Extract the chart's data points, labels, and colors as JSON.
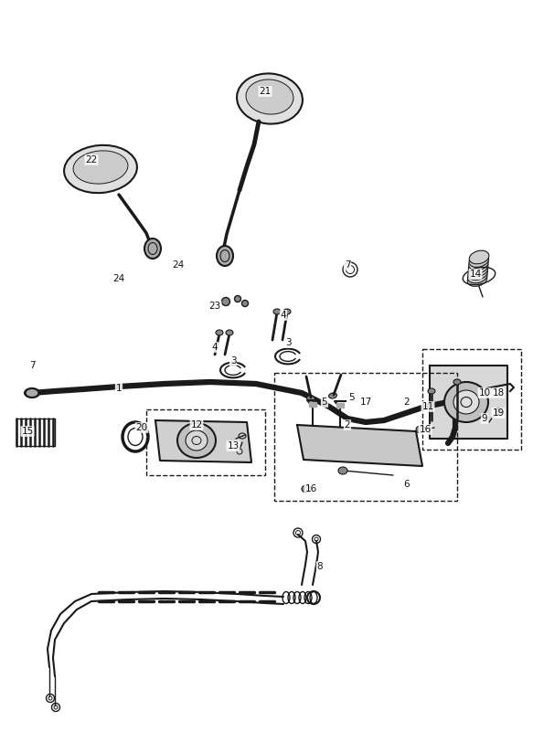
{
  "background_color": "#ffffff",
  "fig_width": 5.83,
  "fig_height": 8.24,
  "dpi": 100,
  "line_color": "#1a1a1a",
  "label_fontsize": 7.5,
  "label_color": "#111111",
  "labels": [
    [
      "22",
      100,
      175
    ],
    [
      "21",
      290,
      100
    ],
    [
      "24",
      195,
      290
    ],
    [
      "24",
      130,
      305
    ],
    [
      "23",
      235,
      335
    ],
    [
      "4",
      310,
      345
    ],
    [
      "4",
      235,
      380
    ],
    [
      "3",
      255,
      395
    ],
    [
      "3",
      315,
      375
    ],
    [
      "7",
      380,
      290
    ],
    [
      "7",
      35,
      400
    ],
    [
      "1",
      130,
      425
    ],
    [
      "17",
      400,
      440
    ],
    [
      "5",
      355,
      440
    ],
    [
      "5",
      385,
      435
    ],
    [
      "2",
      445,
      440
    ],
    [
      "2",
      380,
      465
    ],
    [
      "16",
      465,
      470
    ],
    [
      "16",
      340,
      535
    ],
    [
      "6",
      445,
      530
    ],
    [
      "12",
      215,
      465
    ],
    [
      "20",
      155,
      468
    ],
    [
      "13",
      255,
      488
    ],
    [
      "15",
      30,
      472
    ],
    [
      "9",
      530,
      458
    ],
    [
      "10",
      530,
      430
    ],
    [
      "11",
      468,
      445
    ],
    [
      "14",
      520,
      300
    ],
    [
      "18",
      545,
      430
    ],
    [
      "19",
      545,
      452
    ],
    [
      "8",
      350,
      620
    ]
  ]
}
